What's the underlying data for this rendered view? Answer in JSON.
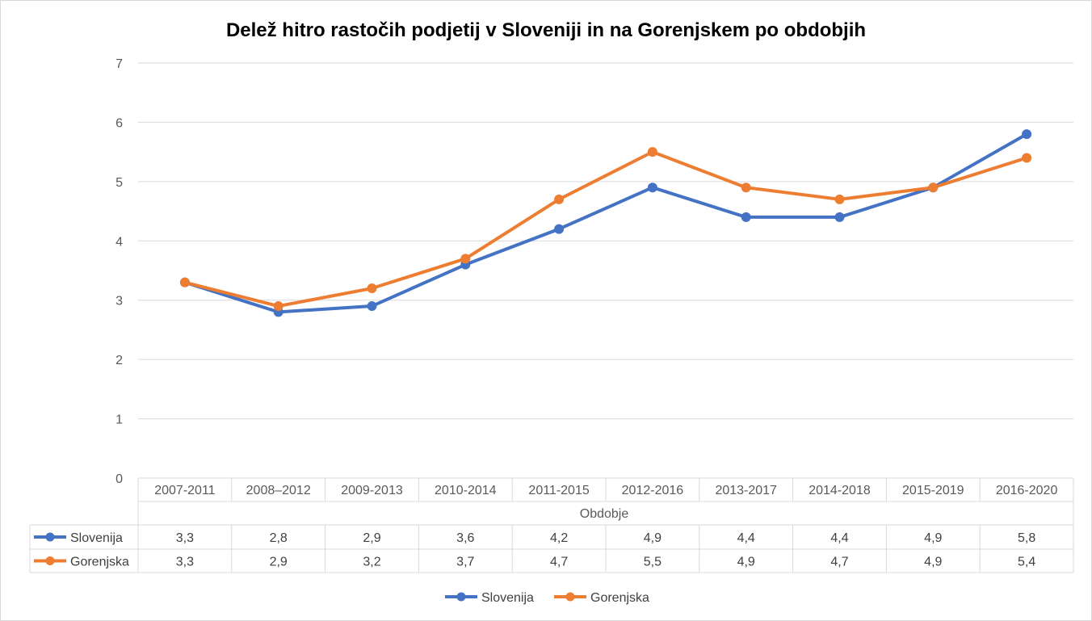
{
  "chart_data": {
    "type": "line",
    "title": "Delež hitro rastočih podjetij v Sloveniji in na Gorenjskem po obdobjih",
    "xlabel": "Obdobje",
    "ylabel": "",
    "categories": [
      "2007-2011",
      "2008–2012",
      "2009-2013",
      "2010-2014",
      "2011-2015",
      "2012-2016",
      "2013-2017",
      "2014-2018",
      "2015-2019",
      "2016-2020"
    ],
    "ylim": [
      0,
      7
    ],
    "yticks": [
      "0",
      "1",
      "2",
      "3",
      "4",
      "5",
      "6",
      "7"
    ],
    "grid": true,
    "legend_position": "bottom",
    "data_table": true,
    "series": [
      {
        "name": "Slovenija",
        "color": "#4472C4",
        "values": [
          3.3,
          2.8,
          2.9,
          3.6,
          4.2,
          4.9,
          4.4,
          4.4,
          4.9,
          5.8
        ],
        "labels": [
          "3,3",
          "2,8",
          "2,9",
          "3,6",
          "4,2",
          "4,9",
          "4,4",
          "4,4",
          "4,9",
          "5,8"
        ]
      },
      {
        "name": "Gorenjska",
        "color": "#ED7D31",
        "values": [
          3.3,
          2.9,
          3.2,
          3.7,
          4.7,
          5.5,
          4.9,
          4.7,
          4.9,
          5.4
        ],
        "labels": [
          "3,3",
          "2,9",
          "3,2",
          "3,7",
          "4,7",
          "5,5",
          "4,9",
          "4,7",
          "4,9",
          "5,4"
        ]
      }
    ]
  }
}
